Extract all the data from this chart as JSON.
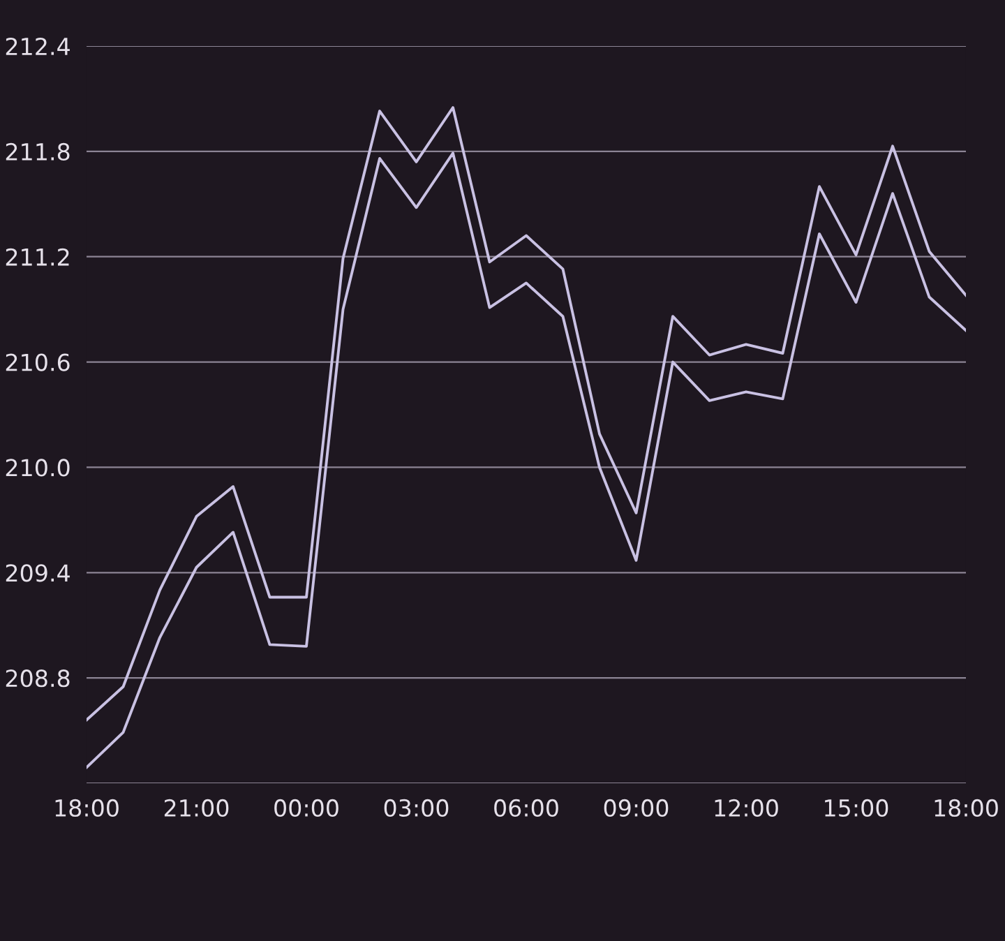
{
  "chart_data": {
    "type": "line",
    "categories": [
      "18:00",
      null,
      null,
      "21:00",
      null,
      null,
      "00:00",
      null,
      null,
      "03:00",
      null,
      null,
      "06:00",
      null,
      null,
      "09:00",
      null,
      null,
      "12:00",
      null,
      null,
      "15:00",
      null,
      null,
      "18:00"
    ],
    "series": [
      {
        "color": "#c9c1e3",
        "values": [
          208.56,
          208.75,
          209.3,
          209.72,
          209.89,
          209.26,
          209.26,
          211.19,
          212.03,
          211.74,
          212.05,
          211.17,
          211.32,
          211.13,
          210.19,
          209.74,
          210.86,
          210.64,
          210.7,
          210.65,
          211.6,
          211.21,
          211.83,
          211.23,
          210.98
        ]
      },
      {
        "color": "#c9c1e3",
        "values": [
          208.29,
          208.49,
          209.03,
          209.43,
          209.63,
          208.99,
          208.98,
          210.9,
          211.76,
          211.48,
          211.79,
          210.91,
          211.05,
          210.86,
          210.0,
          209.47,
          210.6,
          210.38,
          210.43,
          210.39,
          211.33,
          210.94,
          211.56,
          210.97,
          210.78
        ]
      }
    ],
    "ylim": [
      208.2,
      212.4
    ],
    "yticks": [
      {
        "value": 208.2,
        "label": null
      },
      {
        "value": 208.8,
        "label": "208.8"
      },
      {
        "value": 209.4,
        "label": "209.4"
      },
      {
        "value": 210.0,
        "label": "210.0"
      },
      {
        "value": 210.6,
        "label": "210.6"
      },
      {
        "value": 211.2,
        "label": "211.2"
      },
      {
        "value": 211.8,
        "label": "211.8"
      },
      {
        "value": 212.4,
        "label": "212.4"
      }
    ],
    "grid": "y",
    "marker": "none",
    "line_style": "solid"
  }
}
